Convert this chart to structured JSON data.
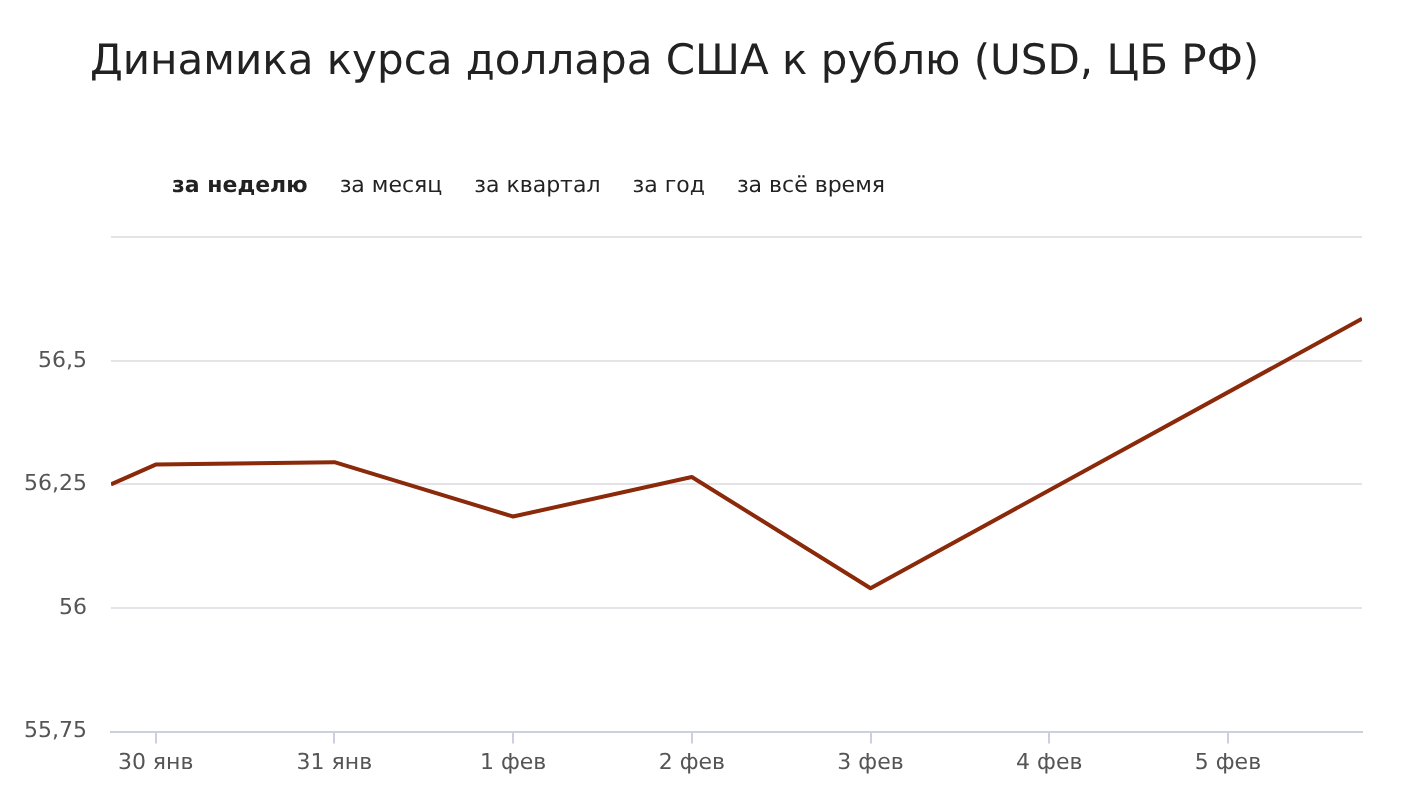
{
  "chart_data": {
    "type": "line",
    "title": "Динамика курса доллара США к рублю (USD, ЦБ РФ)",
    "annotations": [
      "за неделю",
      "за месяц",
      "за квартал",
      "за год",
      "за всё время"
    ],
    "x": [
      "--01-29T18:00",
      "--01-30",
      "--01-31",
      "--02-01",
      "--02-02",
      "--02-03",
      "--02-05T18:00"
    ],
    "series": [
      {
        "color": "#8b2a0a",
        "values": [
          56.25,
          56.29,
          56.295,
          56.185,
          56.265,
          56.04,
          56.585
        ]
      }
    ],
    "xlim": [
      "--01-29T18:00",
      "--02-05T18:00"
    ],
    "xticks": [
      {
        "value": "--01-30",
        "label": "30 янв"
      },
      {
        "value": "--01-31",
        "label": "31 янв"
      },
      {
        "value": "--02-01",
        "label": "1 фев"
      },
      {
        "value": "--02-02",
        "label": "2 фев"
      },
      {
        "value": "--02-03",
        "label": "3 фев"
      },
      {
        "value": "--02-04",
        "label": "4 фев"
      },
      {
        "value": "--02-05",
        "label": "5 фев"
      }
    ],
    "ylim": [
      55.75,
      56.75
    ],
    "yticks": [
      {
        "value": 55.75,
        "label": "55,75"
      },
      {
        "value": 56,
        "label": "56"
      },
      {
        "value": 56.25,
        "label": "56,25"
      },
      {
        "value": 56.5,
        "label": "56,5"
      },
      {
        "value": 56.75,
        "label": null
      }
    ],
    "grid": "y",
    "legend": false,
    "marker": "none",
    "line_style": "solid"
  }
}
